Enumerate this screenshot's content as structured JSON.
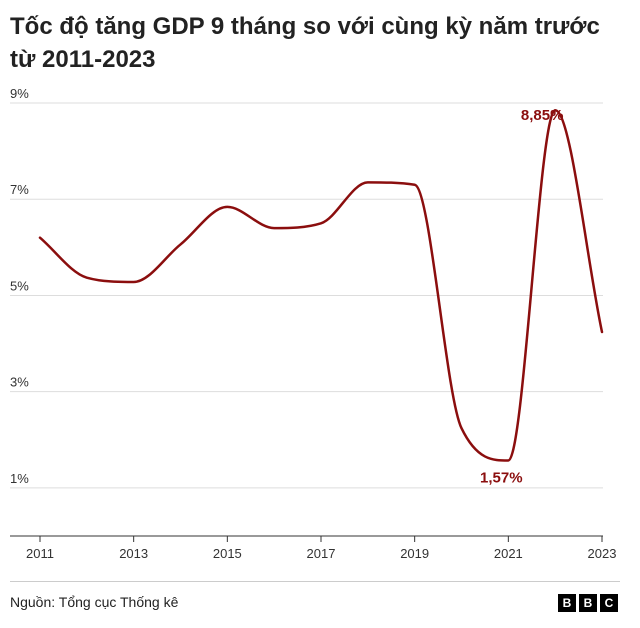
{
  "chart_data": {
    "type": "line",
    "title": "Tốc độ tăng GDP 9 tháng so với cùng kỳ năm trước từ 2011-2023",
    "x": [
      2011,
      2012,
      2013,
      2014,
      2015,
      2016,
      2017,
      2018,
      2019,
      2020,
      2021,
      2022,
      2023
    ],
    "series": [
      {
        "values": [
          6.2,
          5.37,
          5.28,
          6.06,
          6.84,
          6.4,
          6.5,
          7.35,
          7.3,
          2.24,
          1.57,
          8.85,
          4.24
        ]
      }
    ],
    "ylim": [
      0,
      9
    ],
    "yticks": [
      1,
      3,
      5,
      7,
      9
    ],
    "ytick_labels": [
      "1%",
      "3%",
      "5%",
      "7%",
      "9%"
    ],
    "xticks": [
      2011,
      2013,
      2015,
      2017,
      2019,
      2021,
      2023
    ],
    "xtick_labels": [
      "2011",
      "2013",
      "2015",
      "2017",
      "2019",
      "2021",
      "2023"
    ],
    "annotations": [
      {
        "x": 2021,
        "y": 1.57,
        "text": "1,57%"
      },
      {
        "x": 2022,
        "y": 8.85,
        "text": "8,85%"
      }
    ],
    "grid": true,
    "line_color": "#8b0e0e",
    "grid_color": "#dddddd"
  },
  "source": "Nguồn: Tổng cục Thống kê",
  "logo": [
    "B",
    "B",
    "C"
  ]
}
